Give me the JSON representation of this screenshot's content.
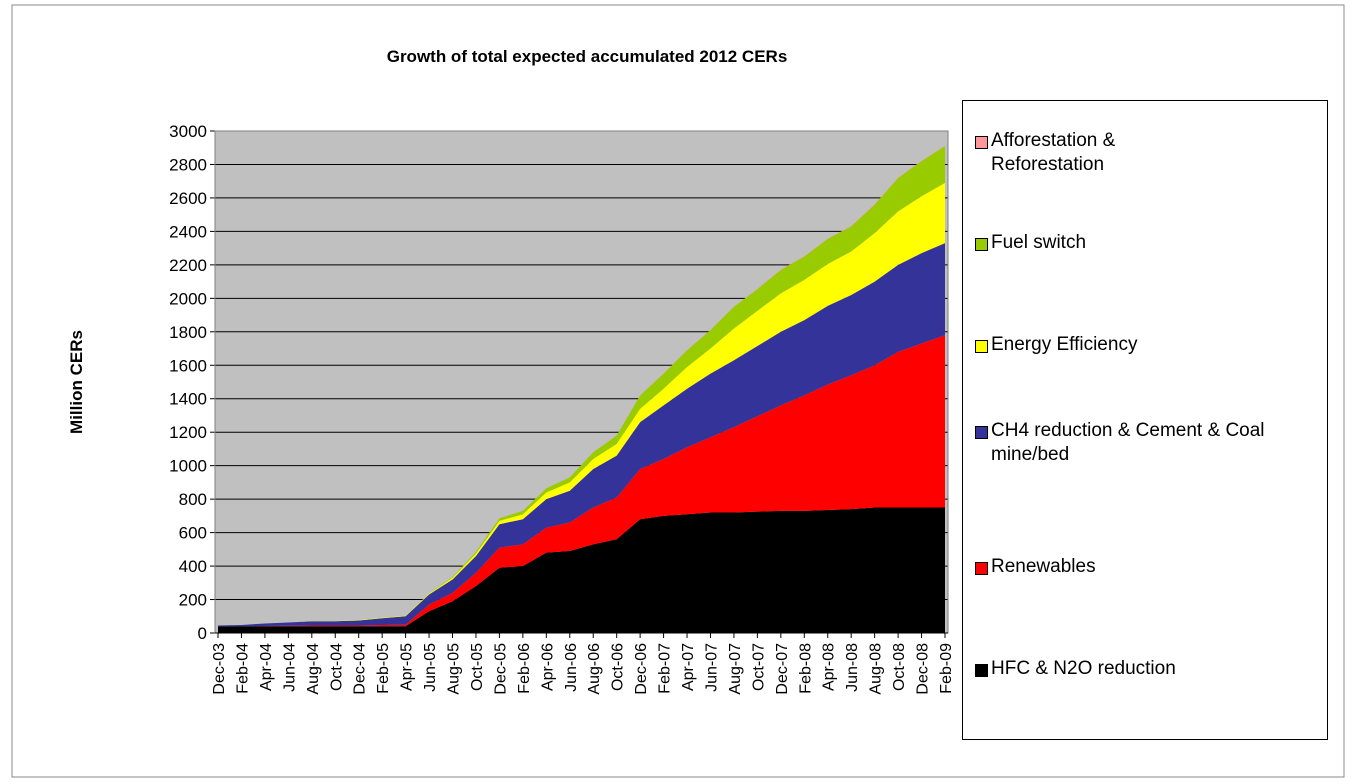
{
  "chart_data": {
    "type": "stacked_area",
    "title": "Growth of total expected accumulated 2012 CERs",
    "y_label": "Million CERs",
    "categories": [
      "Dec-03",
      "Feb-04",
      "Apr-04",
      "Jun-04",
      "Aug-04",
      "Oct-04",
      "Dec-04",
      "Feb-05",
      "Apr-05",
      "Jun-05",
      "Aug-05",
      "Oct-05",
      "Dec-05",
      "Feb-06",
      "Apr-06",
      "Jun-06",
      "Aug-06",
      "Oct-06",
      "Dec-06",
      "Feb-07",
      "Apr-07",
      "Jun-07",
      "Aug-07",
      "Oct-07",
      "Dec-07",
      "Feb-08",
      "Apr-08",
      "Jun-08",
      "Aug-08",
      "Oct-08",
      "Dec-08",
      "Feb-09"
    ],
    "series": [
      {
        "name": "HFC & N2O reduction",
        "color": "#000000",
        "values": [
          40,
          40,
          40,
          40,
          40,
          40,
          40,
          40,
          40,
          130,
          190,
          280,
          390,
          400,
          480,
          490,
          530,
          560,
          680,
          700,
          710,
          720,
          720,
          725,
          730,
          730,
          735,
          740,
          750,
          750,
          750,
          750
        ]
      },
      {
        "name": "Renewables",
        "color": "#ff0000",
        "values": [
          0,
          0,
          2,
          3,
          5,
          5,
          5,
          8,
          10,
          40,
          50,
          80,
          120,
          130,
          150,
          170,
          220,
          250,
          300,
          340,
          400,
          450,
          510,
          570,
          630,
          690,
          750,
          800,
          850,
          930,
          980,
          1030
        ]
      },
      {
        "name": "CH4 reduction & Cement & Coal mine/bed",
        "color": "#333399",
        "values": [
          5,
          8,
          15,
          20,
          25,
          25,
          30,
          40,
          50,
          60,
          80,
          100,
          140,
          150,
          170,
          190,
          230,
          250,
          280,
          320,
          350,
          380,
          400,
          420,
          440,
          450,
          470,
          480,
          500,
          520,
          540,
          550
        ]
      },
      {
        "name": "Energy Efficiency",
        "color": "#ffff00",
        "values": [
          0,
          0,
          0,
          0,
          2,
          2,
          3,
          3,
          3,
          5,
          10,
          15,
          20,
          30,
          40,
          50,
          60,
          70,
          80,
          100,
          130,
          150,
          190,
          210,
          230,
          240,
          250,
          260,
          290,
          320,
          340,
          360
        ]
      },
      {
        "name": "Fuel switch",
        "color": "#99cc00",
        "values": [
          0,
          0,
          0,
          0,
          0,
          0,
          0,
          0,
          0,
          2,
          5,
          10,
          15,
          20,
          25,
          30,
          40,
          50,
          80,
          90,
          100,
          110,
          130,
          130,
          140,
          140,
          150,
          150,
          170,
          200,
          210,
          220
        ]
      },
      {
        "name": "Afforestation & Reforestation",
        "color": "#ff9999",
        "values": [
          0,
          0,
          0,
          0,
          0,
          0,
          0,
          0,
          0,
          0,
          0,
          0,
          1,
          1,
          1,
          1,
          1,
          1,
          1,
          1,
          1,
          1,
          1,
          1,
          2,
          2,
          2,
          2,
          2,
          2,
          2,
          2
        ]
      }
    ],
    "ylim": [
      0,
      3000
    ],
    "yticks": [
      0,
      200,
      400,
      600,
      800,
      1000,
      1200,
      1400,
      1600,
      1800,
      2000,
      2200,
      2400,
      2600,
      2800,
      3000
    ],
    "grid": true,
    "legend": "right"
  }
}
